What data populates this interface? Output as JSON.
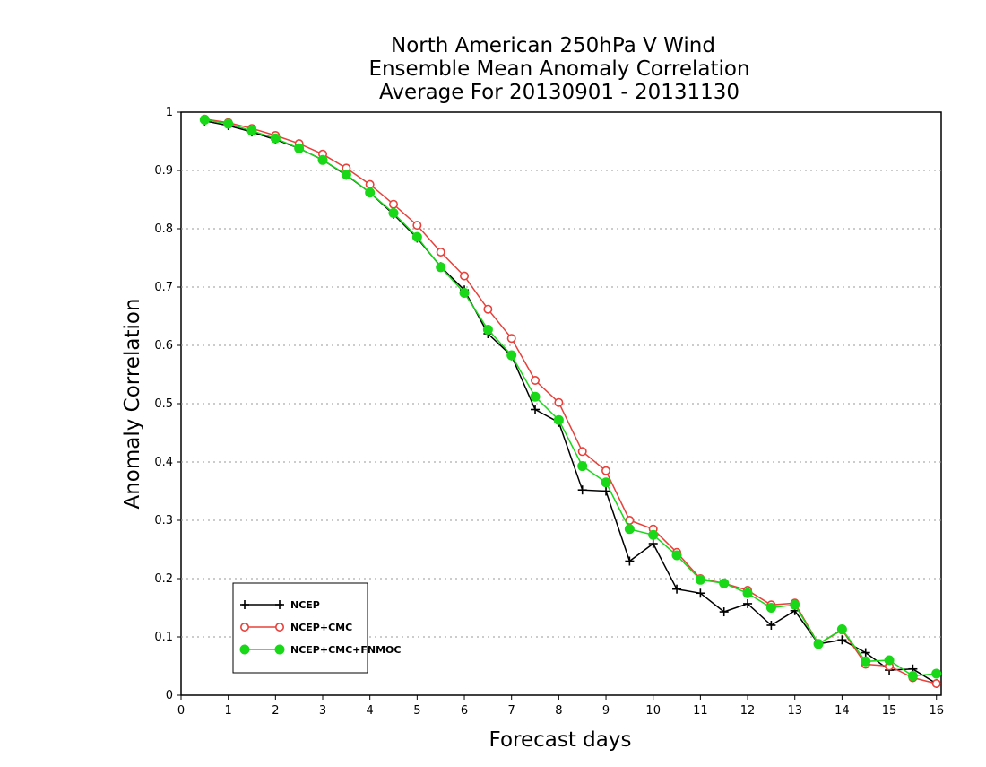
{
  "chart_data": {
    "type": "line",
    "title": [
      "North American 250hPa V Wind",
      "Ensemble Mean Anomaly Correlation",
      "Average For 20130901 - 20131130"
    ],
    "xlabel": "Forecast days",
    "ylabel": "Anomaly Correlation",
    "xlim": [
      0,
      16.1
    ],
    "ylim": [
      0,
      1
    ],
    "xticks": [
      0,
      1,
      2,
      3,
      4,
      5,
      6,
      7,
      8,
      9,
      10,
      11,
      12,
      13,
      14,
      15,
      16
    ],
    "xtick_labels": [
      "0",
      "1",
      "2",
      "3",
      "4",
      "5",
      "6",
      "7",
      "8",
      "9",
      "10",
      "11",
      "12",
      "13",
      "14",
      "15",
      "16"
    ],
    "yticks": [
      0,
      0.1,
      0.2,
      0.3,
      0.4,
      0.5,
      0.6,
      0.7,
      0.8,
      0.9,
      1
    ],
    "ytick_labels": [
      "0",
      "0.1",
      "0.2",
      "0.3",
      "0.4",
      "0.5",
      "0.6",
      "0.7",
      "0.8",
      "0.9",
      "1"
    ],
    "grid": "horizontal dotted",
    "legend_position": "bottom-left",
    "x": [
      0.5,
      1,
      1.5,
      2,
      2.5,
      3,
      3.5,
      4,
      4.5,
      5,
      5.5,
      6,
      6.5,
      7,
      7.5,
      8,
      8.5,
      9,
      9.5,
      10,
      10.5,
      11,
      11.5,
      12,
      12.5,
      13,
      13.5,
      14,
      14.5,
      15,
      15.5,
      16
    ],
    "series": [
      {
        "name": "NCEP",
        "color": "#000000",
        "marker": "plus",
        "values": [
          0.985,
          0.977,
          0.966,
          0.953,
          0.938,
          0.918,
          0.892,
          0.862,
          0.825,
          0.784,
          0.735,
          0.695,
          0.62,
          0.582,
          0.49,
          0.468,
          0.352,
          0.35,
          0.23,
          0.26,
          0.182,
          0.175,
          0.143,
          0.157,
          0.12,
          0.145,
          0.088,
          0.095,
          0.073,
          0.043,
          0.045,
          0.02
        ]
      },
      {
        "name": "NCEP+CMC",
        "color": "#e8403a",
        "marker": "open-circle",
        "values": [
          0.988,
          0.982,
          0.972,
          0.96,
          0.946,
          0.928,
          0.904,
          0.876,
          0.842,
          0.806,
          0.76,
          0.719,
          0.662,
          0.612,
          0.54,
          0.502,
          0.418,
          0.385,
          0.3,
          0.285,
          0.245,
          0.2,
          0.192,
          0.18,
          0.155,
          0.158,
          0.088,
          0.112,
          0.053,
          0.05,
          0.03,
          0.02
        ]
      },
      {
        "name": "NCEP+CMC+FNMOC",
        "color": "#18d818",
        "marker": "filled-circle",
        "values": [
          0.987,
          0.98,
          0.968,
          0.955,
          0.938,
          0.918,
          0.893,
          0.862,
          0.827,
          0.786,
          0.734,
          0.69,
          0.627,
          0.583,
          0.512,
          0.472,
          0.393,
          0.365,
          0.285,
          0.275,
          0.24,
          0.198,
          0.192,
          0.175,
          0.15,
          0.155,
          0.088,
          0.113,
          0.058,
          0.06,
          0.033,
          0.037
        ]
      }
    ]
  }
}
